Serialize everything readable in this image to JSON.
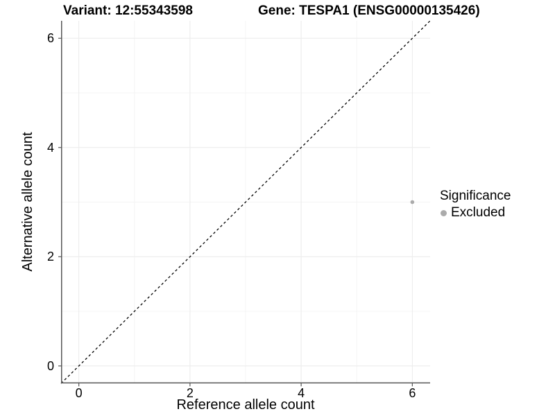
{
  "header": {
    "title_left": "Variant: 12:55343598",
    "title_right": "Gene: TESPA1 (ENSG00000135426)"
  },
  "colors": {
    "background": "#ffffff",
    "axis_line": "#555555",
    "tick_mark": "#555555",
    "major_grid": "#ececec",
    "minor_grid": "#f4f4f4",
    "reference_line": "#000000",
    "point": "#ababab",
    "text": "#000000"
  },
  "chart_data": {
    "type": "scatter",
    "title_left": "Variant: 12:55343598",
    "title_right": "Gene: TESPA1 (ENSG00000135426)",
    "xlabel": "Reference allele count",
    "ylabel": "Alternative allele count",
    "xlim": [
      -0.32,
      6.32
    ],
    "ylim": [
      -0.32,
      6.32
    ],
    "x_ticks": [
      0,
      2,
      4,
      6
    ],
    "y_ticks": [
      0,
      2,
      4,
      6
    ],
    "minor_gridlines": [
      1,
      3,
      5
    ],
    "grid": true,
    "series": [
      {
        "name": "Excluded",
        "marker": "circle",
        "color": "#ababab",
        "points": [
          {
            "x": 6,
            "y": 3
          }
        ]
      }
    ],
    "reference_line": {
      "slope": 1,
      "intercept": 0,
      "linetype": "dashed",
      "color": "#000000"
    },
    "legend": {
      "position": "right",
      "title": "Significance",
      "items": [
        {
          "label": "Excluded",
          "color": "#ababab"
        }
      ]
    }
  }
}
